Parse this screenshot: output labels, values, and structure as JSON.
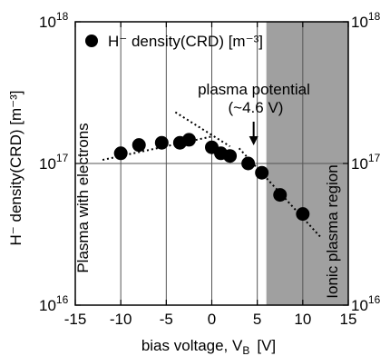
{
  "chart_data": {
    "type": "scatter",
    "title": "",
    "xlabel": "bias voltage, V",
    "xlabel_sub": "B",
    "xlabel_unit": "[V]",
    "ylabel": "H⁻ density(CRD)  [m⁻³]",
    "xlim": [
      -15,
      15
    ],
    "ylim": [
      1e+16,
      1e+18
    ],
    "yscale": "log",
    "grid": true,
    "x_ticks": [
      -15,
      -10,
      -5,
      0,
      5,
      10,
      15
    ],
    "x_tick_labels": [
      "-15",
      "-10",
      "-5",
      "0",
      "5",
      "10",
      "15"
    ],
    "y_ticks": [
      1e+16,
      1e+17,
      1e+18
    ],
    "y_tick_labels": [
      "10",
      "10",
      "10"
    ],
    "y_tick_exponents": [
      "16",
      "17",
      "18"
    ],
    "legend": {
      "position": "top-left",
      "label": "H⁻ density(CRD)  [m⁻³]",
      "color": "#000000"
    },
    "series": [
      {
        "name": "H⁻ density(CRD)  [m⁻³]",
        "color": "#000000",
        "x": [
          -10,
          -8,
          -5.5,
          -3.5,
          -2.5,
          0,
          1,
          2,
          4,
          5.5,
          7.5,
          10
        ],
        "y": [
          1.18e+17,
          1.35e+17,
          1.4e+17,
          1.4e+17,
          1.47e+17,
          1.3e+17,
          1.18e+17,
          1.13e+17,
          1e+17,
          8.6e+16,
          6e+16,
          4.4e+16
        ]
      }
    ],
    "trend_lines": [
      {
        "x": [
          -12,
          0
        ],
        "y": [
          1.06e+17,
          1.55e+17
        ]
      },
      {
        "x": [
          -4,
          2
        ],
        "y": [
          2.3e+17,
          1.32e+17
        ]
      },
      {
        "x": [
          3,
          12
        ],
        "y": [
          1.28e+17,
          3e+16
        ]
      }
    ],
    "shaded_region": {
      "x": [
        6,
        15
      ],
      "color": "#a0a0a0",
      "label": "Ionic plasma region"
    },
    "annotations": [
      {
        "text": "Plasma with electrons"
      },
      {
        "text": "plasma potential"
      },
      {
        "text": "(~4.6 V)"
      },
      {
        "text": "Ionic plasma region"
      }
    ],
    "arrow_marker": {
      "x": 4.6
    }
  }
}
